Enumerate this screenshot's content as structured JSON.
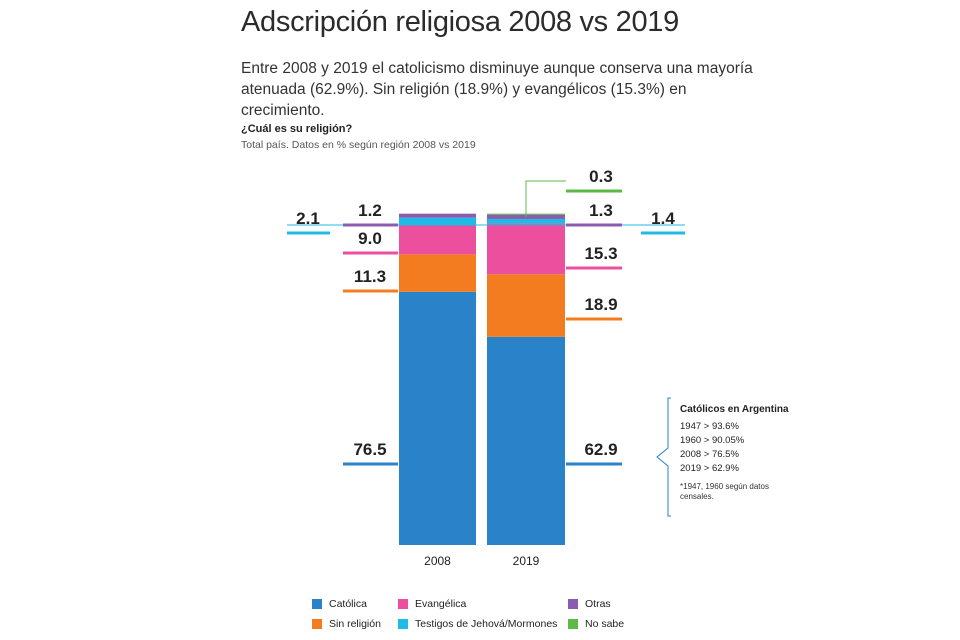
{
  "header": {
    "title": "Adscripción religiosa 2008 vs 2019",
    "subtitle": "Entre 2008 y 2019 el catolicismo disminuye aunque conserva una mayoría atenuada (62.9%). Sin religión (18.9%) y evangélicos (15.3%)  en crecimiento.",
    "question": "¿Cuál es su religión?",
    "source": "Total país. Datos en % según región 2008 vs 2019"
  },
  "colors": {
    "catolica": "#2a82c9",
    "sin_religion": "#f47c20",
    "evangelica": "#ed4f9f",
    "testigos": "#1fbbe6",
    "otras": "#8b5bb0",
    "no_sabe": "#5cb848"
  },
  "chart_data": {
    "type": "bar",
    "stacked": true,
    "categories": [
      "2008",
      "2019"
    ],
    "series": [
      {
        "name": "Católica",
        "key": "catolica",
        "values": [
          76.5,
          62.9
        ],
        "labels": [
          "76.5",
          "62.9"
        ]
      },
      {
        "name": "Sin religión",
        "key": "sin_religion",
        "values": [
          11.3,
          18.9
        ],
        "labels": [
          "11.3",
          "18.9"
        ]
      },
      {
        "name": "Evangélica",
        "key": "evangelica",
        "values": [
          9.0,
          15.3
        ],
        "labels": [
          "9.0",
          "15.3"
        ]
      },
      {
        "name": "Testigos de Jehová/Mormones",
        "key": "testigos",
        "values": [
          2.1,
          1.4
        ],
        "labels": [
          "2.1",
          "1.4"
        ]
      },
      {
        "name": "Otras",
        "key": "otras",
        "values": [
          1.2,
          1.3
        ],
        "labels": [
          "1.2",
          "1.3"
        ]
      },
      {
        "name": "No sabe",
        "key": "no_sabe",
        "values": [
          0,
          0.3
        ],
        "labels": [
          "",
          "0.3"
        ]
      }
    ],
    "ylim": [
      0,
      100
    ],
    "legend_position": "bottom"
  },
  "legend": [
    {
      "label": "Católica",
      "key": "catolica"
    },
    {
      "label": "Evangélica",
      "key": "evangelica"
    },
    {
      "label": "Otras",
      "key": "otras"
    },
    {
      "label": "Sin religión",
      "key": "sin_religion"
    },
    {
      "label": "Testigos de Jehová/Mormones",
      "key": "testigos"
    },
    {
      "label": "No sabe",
      "key": "no_sabe"
    }
  ],
  "note": {
    "title": "Católicos en Argentina",
    "lines": [
      "1947 > 93.6%",
      "1960 > 90.05%",
      "2008 > 76.5%",
      "2019 > 62.9%"
    ],
    "footnote": "*1947, 1960 según datos censales."
  }
}
